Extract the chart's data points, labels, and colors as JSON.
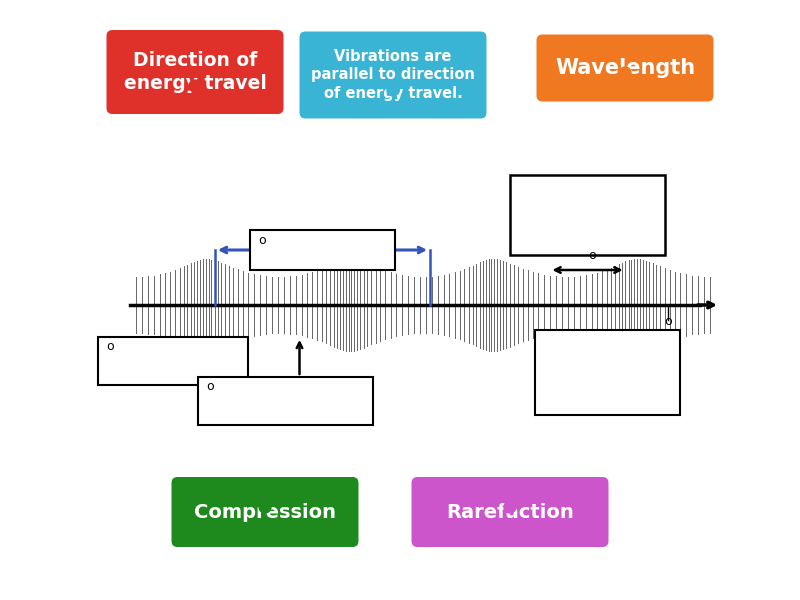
{
  "bg_color": "#ffffff",
  "labels": {
    "direction": "Direction of\nenergy travel",
    "vibrations": "Vibrations are\nparallel to direction\nof energy travel.",
    "wavelength": "Wavelength",
    "compression": "Compression",
    "rarefaction": "Rarefaction"
  },
  "label_colors": {
    "direction": "#e0302a",
    "vibrations": "#3ab4d4",
    "wavelength": "#f07820",
    "compression": "#1e8a1e",
    "rarefaction": "#cc55cc"
  }
}
